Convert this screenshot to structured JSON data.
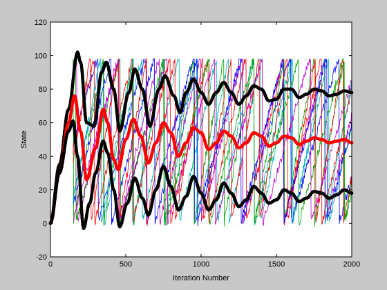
{
  "chart_data": {
    "type": "line",
    "title": "",
    "xlabel": "Iteration Number",
    "ylabel": "State",
    "xlim": [
      0,
      2000
    ],
    "ylim": [
      -20,
      120
    ],
    "xticks": [
      0,
      500,
      1000,
      1500,
      2000
    ],
    "yticks": [
      -20,
      0,
      20,
      40,
      60,
      80,
      100,
      120
    ],
    "grid": false,
    "legend": "none",
    "background": "#c8c8c8",
    "plot_background": "#ffffff",
    "series": [
      {
        "color": "#000000",
        "style": "thick-marker",
        "points": [
          [
            0,
            0
          ],
          [
            60,
            35
          ],
          [
            120,
            68
          ],
          [
            180,
            102
          ],
          [
            200,
            96
          ],
          [
            240,
            60
          ],
          [
            290,
            58
          ],
          [
            340,
            90
          ],
          [
            370,
            96
          ],
          [
            420,
            80
          ],
          [
            460,
            55
          ],
          [
            520,
            78
          ],
          [
            560,
            92
          ],
          [
            610,
            80
          ],
          [
            660,
            58
          ],
          [
            720,
            80
          ],
          [
            760,
            88
          ],
          [
            820,
            76
          ],
          [
            860,
            66
          ],
          [
            900,
            78
          ],
          [
            950,
            86
          ],
          [
            1000,
            78
          ],
          [
            1050,
            71
          ],
          [
            1100,
            78
          ],
          [
            1150,
            84
          ],
          [
            1200,
            78
          ],
          [
            1250,
            71
          ],
          [
            1300,
            76
          ],
          [
            1350,
            82
          ],
          [
            1400,
            80
          ],
          [
            1450,
            73
          ],
          [
            1500,
            74
          ],
          [
            1550,
            80
          ],
          [
            1600,
            80
          ],
          [
            1650,
            75
          ],
          [
            1700,
            77
          ],
          [
            1750,
            80
          ],
          [
            1800,
            79
          ],
          [
            1850,
            76
          ],
          [
            1900,
            77
          ],
          [
            1950,
            79
          ],
          [
            2000,
            78
          ]
        ]
      },
      {
        "color": "#ff0000",
        "style": "thick-marker",
        "points": [
          [
            0,
            0
          ],
          [
            60,
            30
          ],
          [
            120,
            60
          ],
          [
            160,
            76
          ],
          [
            200,
            55
          ],
          [
            240,
            26
          ],
          [
            300,
            45
          ],
          [
            350,
            68
          ],
          [
            380,
            60
          ],
          [
            420,
            38
          ],
          [
            450,
            32
          ],
          [
            500,
            50
          ],
          [
            550,
            62
          ],
          [
            600,
            52
          ],
          [
            650,
            36
          ],
          [
            700,
            48
          ],
          [
            750,
            60
          ],
          [
            800,
            54
          ],
          [
            850,
            40
          ],
          [
            900,
            48
          ],
          [
            950,
            57
          ],
          [
            1000,
            54
          ],
          [
            1050,
            44
          ],
          [
            1100,
            48
          ],
          [
            1150,
            55
          ],
          [
            1200,
            52
          ],
          [
            1250,
            45
          ],
          [
            1300,
            48
          ],
          [
            1350,
            54
          ],
          [
            1400,
            52
          ],
          [
            1450,
            46
          ],
          [
            1500,
            48
          ],
          [
            1550,
            52
          ],
          [
            1600,
            51
          ],
          [
            1650,
            47
          ],
          [
            1700,
            49
          ],
          [
            1750,
            51
          ],
          [
            1800,
            50
          ],
          [
            1850,
            48
          ],
          [
            1900,
            49
          ],
          [
            1950,
            50
          ],
          [
            2000,
            48
          ]
        ]
      },
      {
        "color": "#000000",
        "style": "thick-marker",
        "points": [
          [
            0,
            0
          ],
          [
            60,
            30
          ],
          [
            120,
            55
          ],
          [
            150,
            61
          ],
          [
            180,
            40
          ],
          [
            220,
            -3
          ],
          [
            260,
            12
          ],
          [
            300,
            30
          ],
          [
            350,
            49
          ],
          [
            380,
            42
          ],
          [
            420,
            20
          ],
          [
            460,
            -2
          ],
          [
            510,
            12
          ],
          [
            560,
            27
          ],
          [
            610,
            15
          ],
          [
            650,
            5
          ],
          [
            700,
            20
          ],
          [
            750,
            34
          ],
          [
            800,
            22
          ],
          [
            850,
            8
          ],
          [
            900,
            16
          ],
          [
            950,
            28
          ],
          [
            1000,
            18
          ],
          [
            1050,
            8
          ],
          [
            1100,
            14
          ],
          [
            1150,
            24
          ],
          [
            1200,
            18
          ],
          [
            1250,
            10
          ],
          [
            1300,
            14
          ],
          [
            1350,
            22
          ],
          [
            1400,
            18
          ],
          [
            1450,
            12
          ],
          [
            1500,
            14
          ],
          [
            1550,
            20
          ],
          [
            1600,
            18
          ],
          [
            1650,
            13
          ],
          [
            1700,
            15
          ],
          [
            1750,
            19
          ],
          [
            1800,
            18
          ],
          [
            1850,
            15
          ],
          [
            1900,
            17
          ],
          [
            1950,
            20
          ],
          [
            2000,
            18
          ]
        ]
      }
    ],
    "noise_series_colors": [
      "#00b0b0",
      "#0000ff",
      "#00a000",
      "#ff0000",
      "#c000c0"
    ]
  }
}
